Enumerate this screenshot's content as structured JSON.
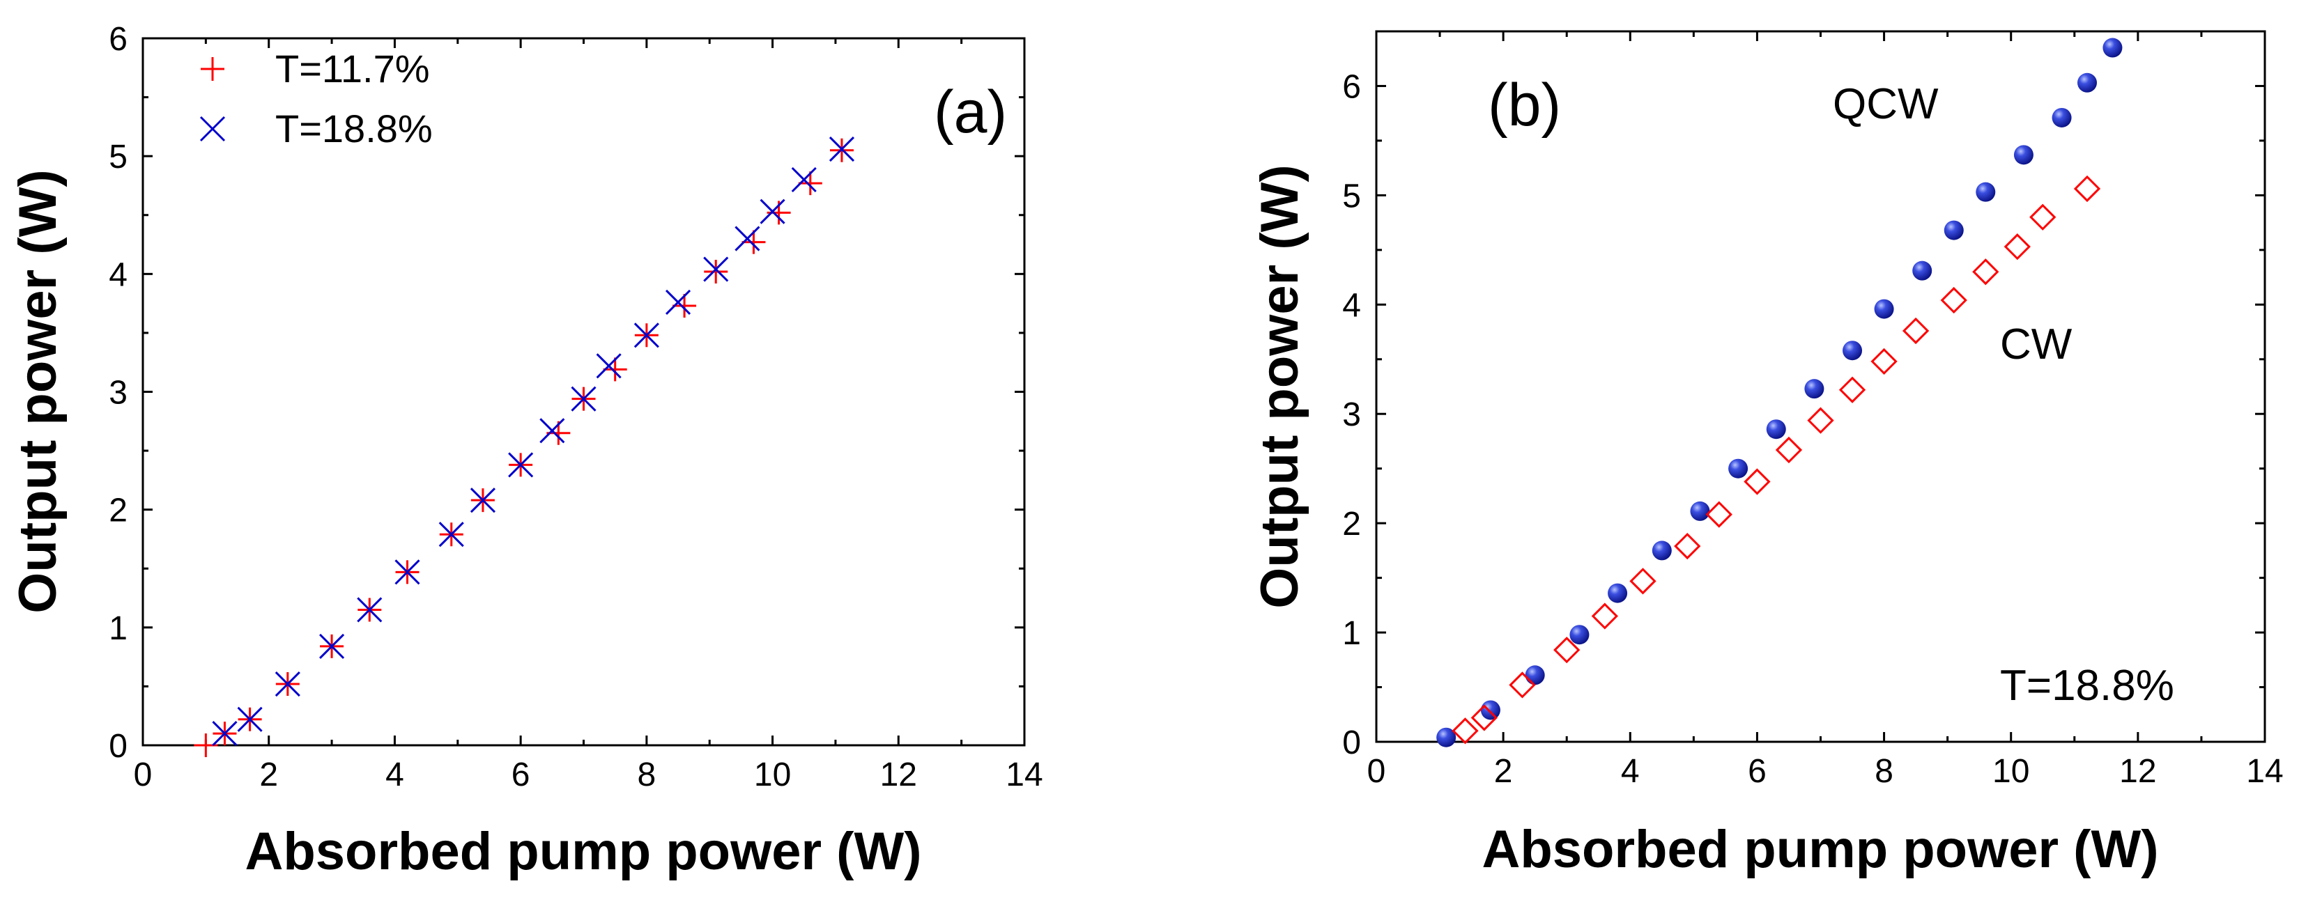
{
  "chart_data": [
    {
      "panel": "(a)",
      "type": "scatter",
      "xlabel": "Absorbed pump power (W)",
      "ylabel": "Output power (W)",
      "xlim": [
        0,
        14
      ],
      "ylim": [
        0,
        6
      ],
      "xticks": [
        0,
        2,
        4,
        6,
        8,
        10,
        12,
        14
      ],
      "yticks": [
        0,
        1,
        2,
        3,
        4,
        5,
        6
      ],
      "legend_position": "top-left",
      "series": [
        {
          "name": "T=11.7%",
          "marker": "plus",
          "color": "#ff0000",
          "x": [
            1.0,
            1.3,
            1.7,
            2.3,
            3.0,
            3.6,
            4.2,
            4.9,
            5.4,
            6.0,
            6.6,
            7.0,
            7.5,
            8.0,
            8.6,
            9.1,
            9.7,
            10.1,
            10.6,
            11.1
          ],
          "y": [
            0.0,
            0.1,
            0.22,
            0.52,
            0.84,
            1.15,
            1.47,
            1.79,
            2.08,
            2.38,
            2.65,
            2.94,
            3.19,
            3.48,
            3.73,
            4.02,
            4.27,
            4.52,
            4.77,
            5.05
          ]
        },
        {
          "name": "T=18.8%",
          "marker": "cross",
          "color": "#0000cc",
          "x": [
            1.3,
            1.7,
            2.3,
            3.0,
            3.6,
            4.2,
            4.9,
            5.4,
            6.0,
            6.5,
            7.0,
            7.4,
            8.0,
            8.5,
            9.1,
            9.6,
            10.0,
            10.5,
            11.1
          ],
          "y": [
            0.1,
            0.22,
            0.52,
            0.84,
            1.15,
            1.47,
            1.79,
            2.08,
            2.38,
            2.67,
            2.94,
            3.22,
            3.48,
            3.76,
            4.04,
            4.3,
            4.53,
            4.8,
            5.06
          ]
        }
      ]
    },
    {
      "panel": "(b)",
      "type": "scatter",
      "xlabel": "Absorbed pump power (W)",
      "ylabel": "Output power (W)",
      "xlim": [
        0,
        14
      ],
      "ylim": [
        0,
        6.5
      ],
      "xticks": [
        0,
        2,
        4,
        6,
        8,
        10,
        12,
        14
      ],
      "yticks": [
        0,
        1,
        2,
        3,
        4,
        5,
        6
      ],
      "annotation": "T=18.8%",
      "series": [
        {
          "name": "QCW",
          "marker": "filled-circle",
          "color": "#1020c8",
          "x": [
            1.1,
            1.8,
            2.5,
            3.2,
            3.8,
            4.5,
            5.1,
            5.7,
            6.3,
            6.9,
            7.5,
            8.0,
            8.6,
            9.1,
            9.6,
            10.2,
            10.8,
            11.2,
            11.6
          ],
          "y": [
            0.04,
            0.29,
            0.61,
            0.98,
            1.36,
            1.75,
            2.11,
            2.5,
            2.86,
            3.23,
            3.58,
            3.96,
            4.31,
            4.68,
            5.03,
            5.37,
            5.71,
            6.03,
            6.35
          ]
        },
        {
          "name": "CW",
          "marker": "open-diamond",
          "color": "#ff0000",
          "x": [
            1.4,
            1.7,
            2.3,
            3.0,
            3.6,
            4.2,
            4.9,
            5.4,
            6.0,
            6.5,
            7.0,
            7.5,
            8.0,
            8.5,
            9.1,
            9.6,
            10.1,
            10.5,
            11.2
          ],
          "y": [
            0.1,
            0.22,
            0.52,
            0.84,
            1.15,
            1.47,
            1.79,
            2.08,
            2.38,
            2.67,
            2.94,
            3.22,
            3.48,
            3.76,
            4.04,
            4.3,
            4.53,
            4.8,
            5.06
          ]
        }
      ]
    }
  ]
}
